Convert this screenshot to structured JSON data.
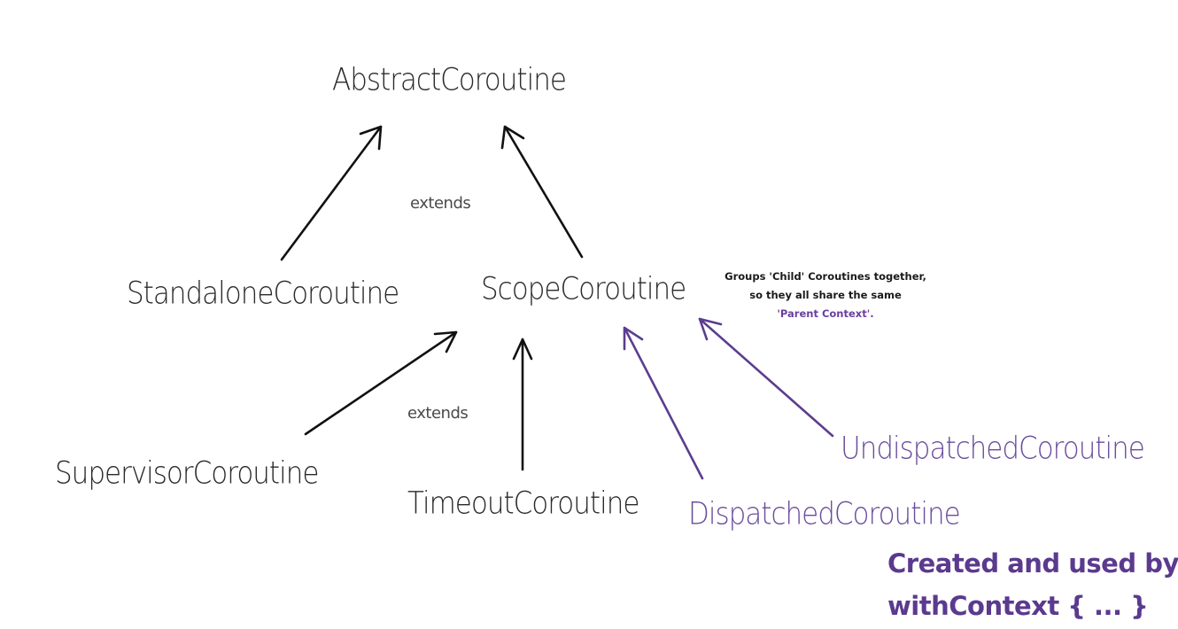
{
  "nodes": {
    "abstract": "AbstractCoroutine",
    "standalone": "StandaloneCoroutine",
    "scope": "ScopeCoroutine",
    "supervisor": "SupervisorCoroutine",
    "timeout": "TimeoutCoroutine",
    "dispatched": "DispatchedCoroutine",
    "undispatched": "UndispatchedCoroutine"
  },
  "relations": {
    "extends_top": "extends",
    "extends_bottom": "extends"
  },
  "note": {
    "line1": "Groups 'Child' Coroutines together,",
    "line2": "so they all share the same",
    "line3": "'Parent Context'."
  },
  "footer": {
    "line1": "Created and used by",
    "line2": "withContext { ... }"
  },
  "colors": {
    "black_text": "#2a2a2a",
    "purple_text": "#6a4c9c",
    "purple_arrow": "#5b3d8f",
    "black_arrow": "#111111",
    "footer": "#5b3a8e"
  }
}
